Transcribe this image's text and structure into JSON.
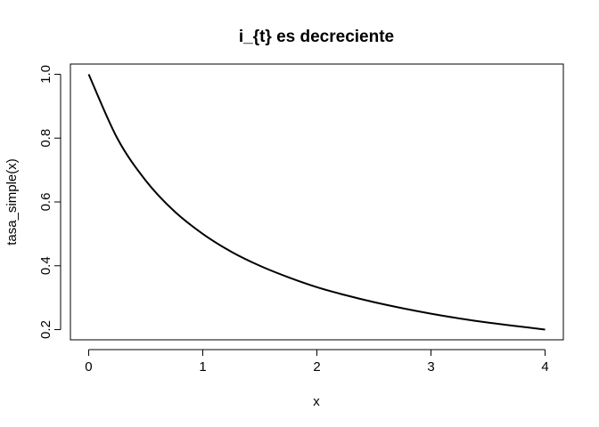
{
  "chart_data": {
    "type": "line",
    "title": "i_{t} es decreciente",
    "xlabel": "x",
    "ylabel": "tasa_simple(x)",
    "xlim": [
      -0.16,
      4.16
    ],
    "ylim": [
      0.168,
      1.032
    ],
    "x_ticks": [
      0,
      1,
      2,
      3,
      4
    ],
    "x_tick_labels": [
      "0",
      "1",
      "2",
      "3",
      "4"
    ],
    "y_ticks": [
      0.2,
      0.4,
      0.6,
      0.8,
      1.0
    ],
    "y_tick_labels": [
      "0.2",
      "0.4",
      "0.6",
      "0.8",
      "1.0"
    ],
    "grid": false,
    "series": [
      {
        "color": "#000000",
        "x": [
          0,
          0.25,
          0.5,
          0.75,
          1,
          1.25,
          1.5,
          1.75,
          2,
          2.25,
          2.5,
          2.75,
          3,
          3.25,
          3.5,
          3.75,
          4
        ],
        "y": [
          1.0,
          0.8,
          0.667,
          0.571,
          0.5,
          0.444,
          0.4,
          0.364,
          0.333,
          0.308,
          0.286,
          0.267,
          0.25,
          0.235,
          0.222,
          0.211,
          0.2
        ]
      }
    ]
  }
}
